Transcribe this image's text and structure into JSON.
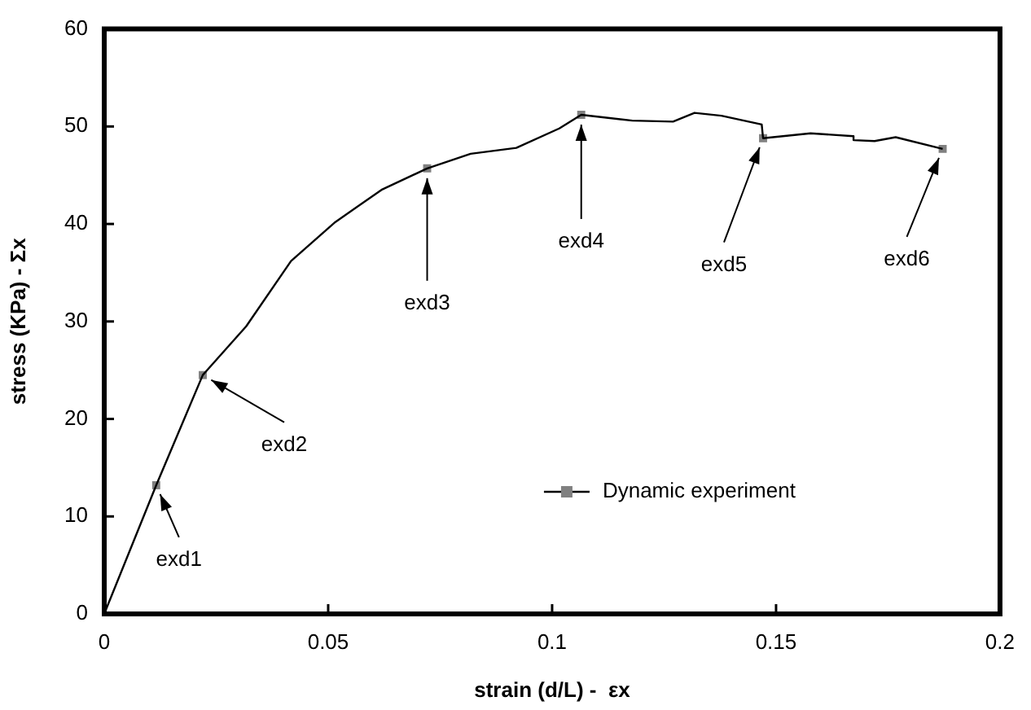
{
  "chart_data": {
    "type": "line",
    "xlabel": "strain (d/L) -  εx",
    "ylabel": "stress (KPa) - Σx",
    "xlim": [
      0,
      0.2
    ],
    "xticks": [
      0,
      0.05,
      0.1,
      0.15,
      0.2
    ],
    "ylim": [
      0,
      60
    ],
    "yticks": [
      0,
      10,
      20,
      30,
      40,
      50,
      60
    ],
    "grid": false,
    "legend": "bottom right",
    "series": [
      {
        "name": "Dynamic experiment",
        "color": "#000000",
        "marker": "none",
        "x": [
          0,
          0.0116,
          0.022,
          0.0317,
          0.0417,
          0.0516,
          0.0619,
          0.0721,
          0.0818,
          0.092,
          0.1016,
          0.1065,
          0.1179,
          0.127,
          0.1318,
          0.1378,
          0.1468,
          0.1471,
          0.1577,
          0.1673,
          0.1673,
          0.172,
          0.1767,
          0.1872
        ],
        "values": [
          0,
          13.2,
          24.5,
          29.5,
          36.2,
          40.2,
          43.5,
          45.7,
          47.2,
          47.8,
          49.8,
          51.2,
          50.6,
          50.5,
          51.4,
          51.1,
          50.2,
          48.8,
          49.3,
          49.0,
          48.6,
          48.5,
          48.9,
          47.7
        ]
      },
      {
        "type": "scatter",
        "color": "#808080",
        "marker": "square",
        "x": [
          0.0116,
          0.022,
          0.0721,
          0.1065,
          0.1471,
          0.1872
        ],
        "values": [
          13.2,
          24.5,
          45.7,
          51.2,
          48.8,
          47.7
        ]
      }
    ],
    "annotations": [
      {
        "text": "exd1",
        "x": 0.0116,
        "y": 13.2
      },
      {
        "text": "exd2",
        "x": 0.022,
        "y": 24.5
      },
      {
        "text": "exd3",
        "x": 0.0721,
        "y": 45.7
      },
      {
        "text": "exd4",
        "x": 0.1065,
        "y": 51.2
      },
      {
        "text": "exd5",
        "x": 0.1471,
        "y": 48.8
      },
      {
        "text": "exd6",
        "x": 0.1872,
        "y": 47.7
      }
    ]
  }
}
